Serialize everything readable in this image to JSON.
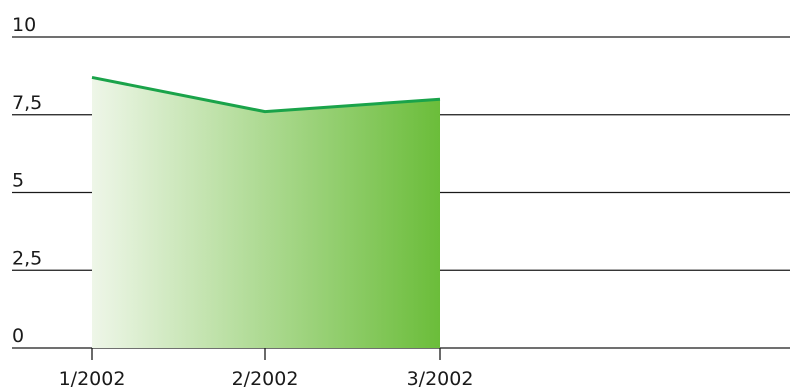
{
  "chart_data": {
    "type": "area",
    "categories": [
      "1/2002",
      "2/2002",
      "3/2002"
    ],
    "series": [
      {
        "values": [
          8.7,
          7.6,
          8.0
        ]
      }
    ],
    "ylim": [
      0,
      10
    ],
    "yticks": [
      0,
      2.5,
      5,
      7.5,
      10
    ],
    "ytick_labels": [
      "0",
      "2,5",
      "5",
      "7,5",
      "10"
    ],
    "grid": true,
    "legend": "none",
    "colors": {
      "line": "#1aa34a",
      "fill_light": "#eef6e8",
      "fill_dark": "#6bbd3a",
      "grid": "#1a1a1a",
      "text": "#1a1a1a"
    }
  }
}
